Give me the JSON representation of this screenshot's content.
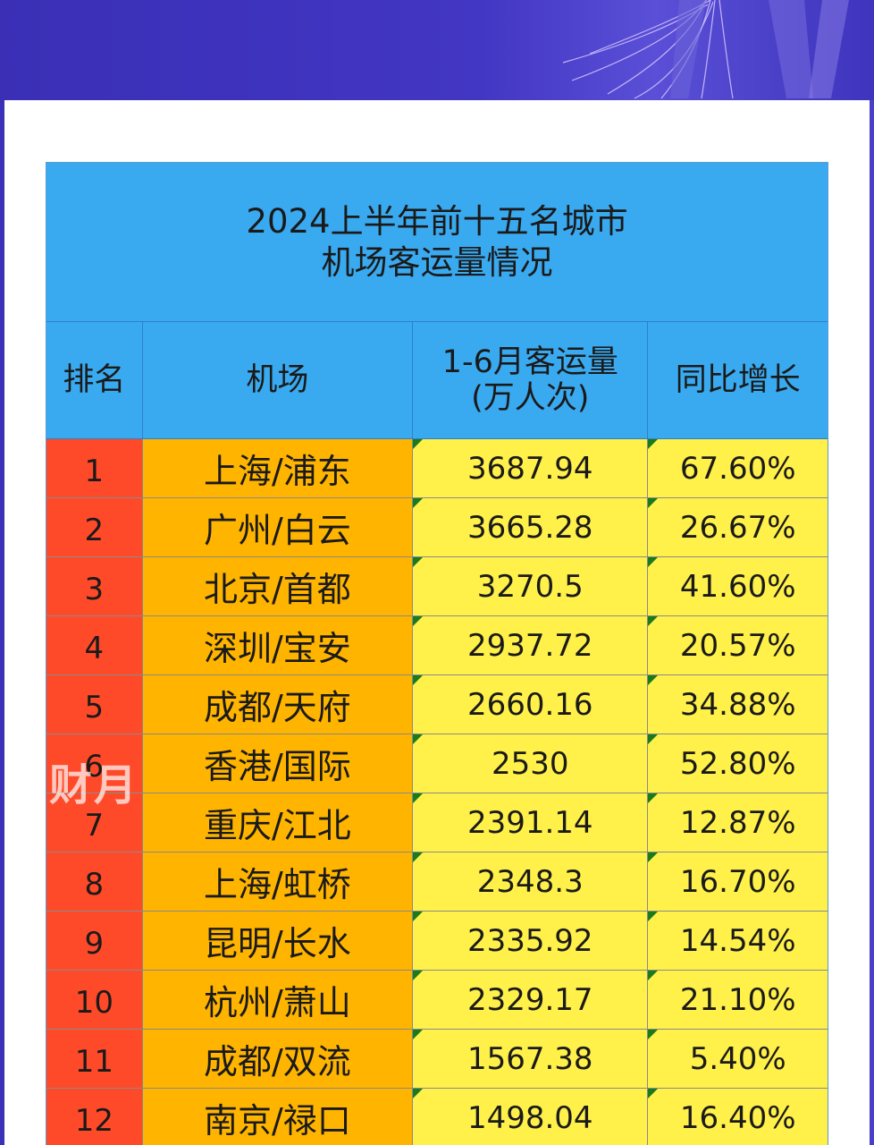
{
  "table": {
    "title_line1": "2024上半年前十五名城市",
    "title_line2": "机场客运量情况",
    "headers": {
      "rank": "排名",
      "airport": "机场",
      "volume_line1": "1-6月客运量",
      "volume_line2": "(万人次)",
      "growth": "同比增长"
    },
    "rows": [
      {
        "rank": "1",
        "airport": "上海/浦东",
        "volume": "3687.94",
        "growth": "67.60%"
      },
      {
        "rank": "2",
        "airport": "广州/白云",
        "volume": "3665.28",
        "growth": "26.67%"
      },
      {
        "rank": "3",
        "airport": "北京/首都",
        "volume": "3270.5",
        "growth": "41.60%"
      },
      {
        "rank": "4",
        "airport": "深圳/宝安",
        "volume": "2937.72",
        "growth": "20.57%"
      },
      {
        "rank": "5",
        "airport": "成都/天府",
        "volume": "2660.16",
        "growth": "34.88%"
      },
      {
        "rank": "6",
        "airport": "香港/国际",
        "volume": "2530",
        "growth": "52.80%"
      },
      {
        "rank": "7",
        "airport": "重庆/江北",
        "volume": "2391.14",
        "growth": "12.87%"
      },
      {
        "rank": "8",
        "airport": "上海/虹桥",
        "volume": "2348.3",
        "growth": "16.70%"
      },
      {
        "rank": "9",
        "airport": "昆明/长水",
        "volume": "2335.92",
        "growth": "14.54%"
      },
      {
        "rank": "10",
        "airport": "杭州/萧山",
        "volume": "2329.17",
        "growth": "21.10%"
      },
      {
        "rank": "11",
        "airport": "成都/双流",
        "volume": "1567.38",
        "growth": "5.40%"
      },
      {
        "rank": "12",
        "airport": "南京/禄口",
        "volume": "1498.04",
        "growth": "16.40%"
      }
    ]
  },
  "watermark": "财月",
  "colors": {
    "header_blue": "#3aaaf0",
    "rank_red": "#ff4a2a",
    "airport_orange": "#ffb400",
    "value_yellow": "#fff04a"
  }
}
